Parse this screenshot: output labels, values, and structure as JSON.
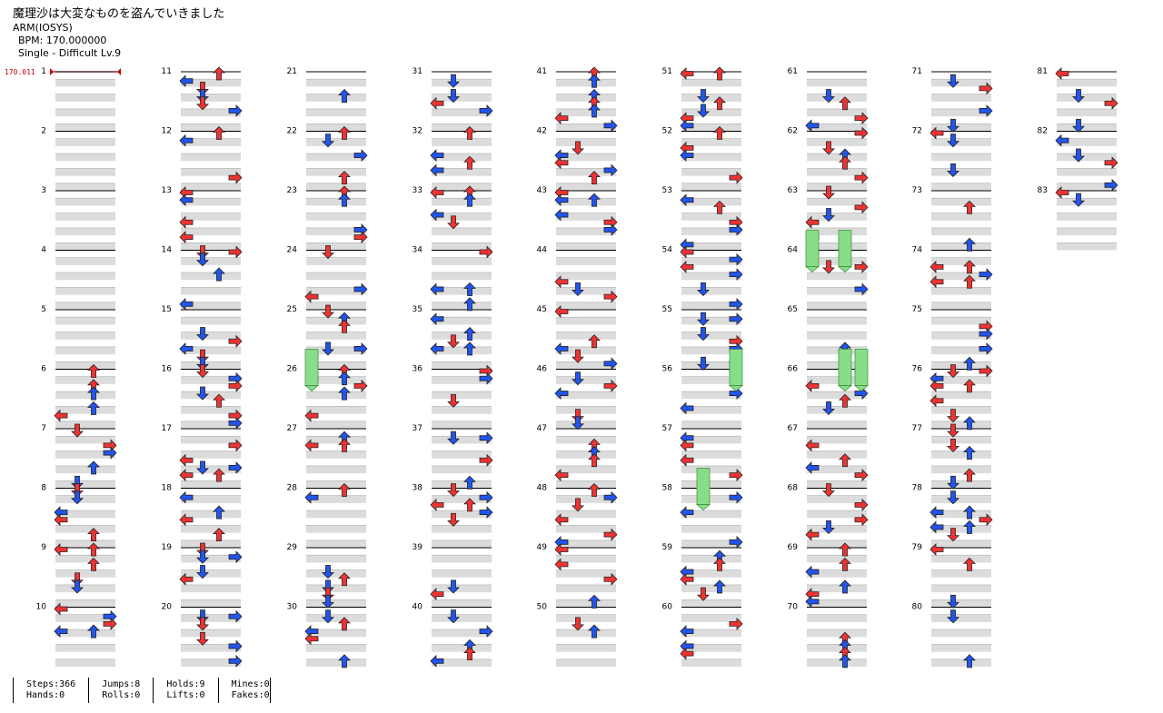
{
  "song": {
    "title": "魔理沙は大変なものを盗んでいきました",
    "artist": "ARM(IOSYS)",
    "bpm_line": "BPM: 170.000000",
    "difficulty_line": "Single - Difficult  Lv.9"
  },
  "bpm_change": {
    "label": "170.011"
  },
  "measures": {
    "count": 83,
    "labels": [
      "1",
      "2",
      "3",
      "4",
      "5",
      "6",
      "7",
      "8",
      "9",
      "10",
      "11",
      "12",
      "13",
      "14",
      "15",
      "16",
      "17",
      "18",
      "19",
      "20",
      "21",
      "22",
      "23",
      "24",
      "25",
      "26",
      "27",
      "28",
      "29",
      "30",
      "31",
      "32",
      "33",
      "34",
      "35",
      "36",
      "37",
      "38",
      "39",
      "40",
      "41",
      "42",
      "43",
      "44",
      "45",
      "46",
      "47",
      "48",
      "49",
      "50",
      "51",
      "52",
      "53",
      "54",
      "55",
      "56",
      "57",
      "58",
      "59",
      "60",
      "61",
      "62",
      "63",
      "64",
      "65",
      "66",
      "67",
      "68",
      "69",
      "70",
      "71",
      "72",
      "73",
      "74",
      "75",
      "76",
      "77",
      "78",
      "79",
      "80",
      "81",
      "82",
      "83"
    ],
    "per_column": 10
  },
  "colors": {
    "quarter_note": "#ee3333",
    "eighth_note": "#2255ee",
    "hold": "#88dd88",
    "band": "#dcdcdc"
  },
  "stats": [
    {
      "top": "Steps:366",
      "bottom": "Hands:0"
    },
    {
      "top": "Jumps:8",
      "bottom": "Rolls:0"
    },
    {
      "top": "Holds:9",
      "bottom": "Lifts:0"
    },
    {
      "top": "Mines:0",
      "bottom": "Fakes:0"
    }
  ]
}
